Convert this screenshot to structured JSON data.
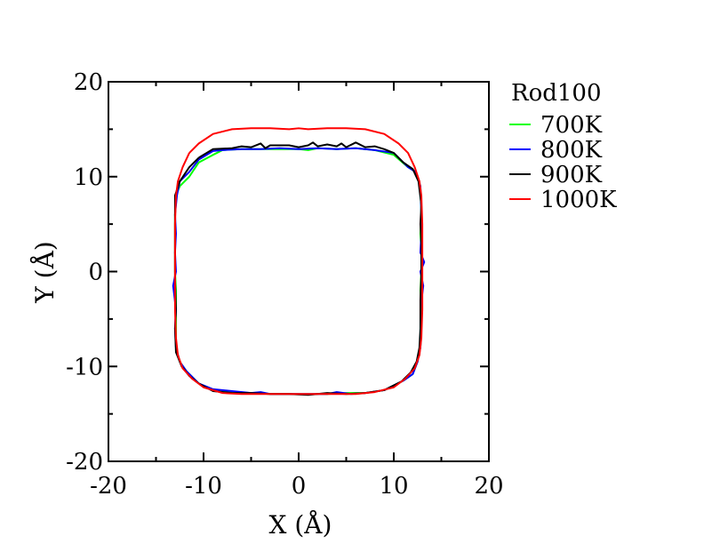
{
  "chart_data": {
    "type": "line",
    "title": "",
    "xlabel": "X (Å)",
    "ylabel": "Y (Å)",
    "xlim": [
      -20,
      20
    ],
    "ylim": [
      -20,
      20
    ],
    "xticks": [
      -20,
      -10,
      0,
      10,
      20
    ],
    "yticks": [
      -20,
      -10,
      0,
      10,
      20
    ],
    "xtick_labels": [
      "-20",
      "-10",
      "0",
      "10",
      "20"
    ],
    "ytick_labels": [
      "-20",
      "-10",
      "0",
      "10",
      "20"
    ],
    "grid": false,
    "legend_title": "Rod100",
    "legend_position": "right-outside-top",
    "series": [
      {
        "name": "700K",
        "color": "#00ff00",
        "points": [
          [
            -10.5,
            11.5
          ],
          [
            -9.0,
            12.3
          ],
          [
            -8.0,
            12.8
          ],
          [
            -6.0,
            12.9
          ],
          [
            -4.0,
            12.9
          ],
          [
            -2.0,
            12.9
          ],
          [
            0.0,
            12.9
          ],
          [
            1.0,
            12.8
          ],
          [
            2.0,
            13.0
          ],
          [
            4.0,
            12.9
          ],
          [
            6.0,
            13.0
          ],
          [
            8.0,
            12.8
          ],
          [
            10.0,
            12.3
          ],
          [
            11.5,
            11.0
          ],
          [
            12.3,
            10.5
          ],
          [
            12.8,
            9.0
          ],
          [
            12.9,
            6.0
          ],
          [
            12.8,
            4.0
          ],
          [
            12.9,
            2.0
          ],
          [
            12.9,
            0.0
          ],
          [
            12.8,
            -2.0
          ],
          [
            12.9,
            -4.0
          ],
          [
            12.9,
            -6.0
          ],
          [
            12.8,
            -8.0
          ],
          [
            12.5,
            -9.5
          ],
          [
            12.0,
            -10.8
          ],
          [
            11.0,
            -11.5
          ],
          [
            9.0,
            -12.5
          ],
          [
            7.0,
            -12.8
          ],
          [
            5.0,
            -12.8
          ],
          [
            3.0,
            -12.9
          ],
          [
            1.0,
            -12.9
          ],
          [
            -1.0,
            -12.9
          ],
          [
            -3.0,
            -12.9
          ],
          [
            -5.0,
            -12.8
          ],
          [
            -7.0,
            -12.7
          ],
          [
            -9.0,
            -12.5
          ],
          [
            -10.5,
            -11.8
          ],
          [
            -11.8,
            -10.5
          ],
          [
            -12.5,
            -9.5
          ],
          [
            -12.9,
            -8.0
          ],
          [
            -12.9,
            -6.0
          ],
          [
            -12.9,
            -4.0
          ],
          [
            -12.9,
            -2.0
          ],
          [
            -13.0,
            0.0
          ],
          [
            -13.0,
            2.0
          ],
          [
            -13.0,
            4.0
          ],
          [
            -13.0,
            6.0
          ],
          [
            -12.9,
            8.0
          ],
          [
            -12.5,
            9.0
          ],
          [
            -11.5,
            10.0
          ],
          [
            -10.5,
            11.5
          ]
        ]
      },
      {
        "name": "800K",
        "color": "#0000ff",
        "points": [
          [
            -10.5,
            11.8
          ],
          [
            -9.0,
            12.7
          ],
          [
            -8.0,
            12.8
          ],
          [
            -6.0,
            12.9
          ],
          [
            -4.0,
            12.9
          ],
          [
            -2.0,
            13.0
          ],
          [
            0.0,
            12.9
          ],
          [
            2.0,
            13.0
          ],
          [
            4.0,
            12.9
          ],
          [
            6.0,
            13.0
          ],
          [
            8.0,
            12.8
          ],
          [
            10.0,
            12.5
          ],
          [
            11.5,
            11.0
          ],
          [
            12.3,
            10.5
          ],
          [
            12.8,
            9.0
          ],
          [
            12.9,
            6.0
          ],
          [
            12.9,
            4.0
          ],
          [
            12.8,
            2.0
          ],
          [
            13.2,
            1.0
          ],
          [
            12.8,
            0.0
          ],
          [
            13.1,
            -1.5
          ],
          [
            12.8,
            -4.0
          ],
          [
            12.9,
            -6.0
          ],
          [
            12.8,
            -8.0
          ],
          [
            12.5,
            -9.5
          ],
          [
            12.0,
            -10.8
          ],
          [
            11.0,
            -11.5
          ],
          [
            9.0,
            -12.5
          ],
          [
            7.0,
            -12.8
          ],
          [
            5.5,
            -12.9
          ],
          [
            4.0,
            -12.7
          ],
          [
            3.0,
            -12.9
          ],
          [
            1.0,
            -12.9
          ],
          [
            -1.0,
            -12.9
          ],
          [
            -3.0,
            -12.9
          ],
          [
            -4.0,
            -12.7
          ],
          [
            -5.0,
            -12.8
          ],
          [
            -7.0,
            -12.6
          ],
          [
            -9.0,
            -12.4
          ],
          [
            -10.5,
            -11.8
          ],
          [
            -11.8,
            -10.5
          ],
          [
            -12.5,
            -9.5
          ],
          [
            -12.9,
            -8.0
          ],
          [
            -13.0,
            -6.0
          ],
          [
            -12.9,
            -4.0
          ],
          [
            -13.2,
            -1.5
          ],
          [
            -12.9,
            0.0
          ],
          [
            -13.0,
            2.0
          ],
          [
            -12.9,
            4.0
          ],
          [
            -13.0,
            6.0
          ],
          [
            -12.8,
            8.0
          ],
          [
            -12.5,
            9.5
          ],
          [
            -11.5,
            10.5
          ],
          [
            -10.5,
            11.8
          ]
        ]
      },
      {
        "name": "900K",
        "color": "#000000",
        "points": [
          [
            -10.5,
            12.0
          ],
          [
            -9.0,
            12.9
          ],
          [
            -7.0,
            13.0
          ],
          [
            -6.0,
            13.2
          ],
          [
            -5.0,
            13.1
          ],
          [
            -4.0,
            13.5
          ],
          [
            -3.5,
            13.0
          ],
          [
            -3.0,
            13.3
          ],
          [
            -2.0,
            13.3
          ],
          [
            -1.0,
            13.3
          ],
          [
            0.0,
            13.1
          ],
          [
            1.0,
            13.3
          ],
          [
            1.5,
            13.6
          ],
          [
            2.0,
            13.2
          ],
          [
            3.0,
            13.4
          ],
          [
            4.0,
            13.2
          ],
          [
            4.5,
            13.5
          ],
          [
            5.0,
            13.1
          ],
          [
            6.0,
            13.6
          ],
          [
            7.0,
            13.1
          ],
          [
            8.0,
            13.2
          ],
          [
            9.0,
            12.9
          ],
          [
            10.0,
            12.5
          ],
          [
            11.0,
            11.5
          ],
          [
            12.0,
            10.8
          ],
          [
            12.6,
            9.5
          ],
          [
            12.9,
            7.0
          ],
          [
            12.8,
            5.0
          ],
          [
            12.9,
            3.0
          ],
          [
            12.9,
            0.0
          ],
          [
            12.8,
            -3.0
          ],
          [
            12.8,
            -6.0
          ],
          [
            12.7,
            -8.0
          ],
          [
            12.4,
            -9.5
          ],
          [
            11.8,
            -10.6
          ],
          [
            10.8,
            -11.6
          ],
          [
            9.0,
            -12.5
          ],
          [
            7.0,
            -12.8
          ],
          [
            5.0,
            -12.9
          ],
          [
            3.0,
            -12.8
          ],
          [
            1.0,
            -13.0
          ],
          [
            -1.0,
            -12.9
          ],
          [
            -3.0,
            -12.9
          ],
          [
            -5.0,
            -12.8
          ],
          [
            -7.0,
            -12.8
          ],
          [
            -9.0,
            -12.6
          ],
          [
            -10.5,
            -11.8
          ],
          [
            -11.5,
            -11.0
          ],
          [
            -12.3,
            -10.0
          ],
          [
            -12.9,
            -8.5
          ],
          [
            -13.0,
            -6.0
          ],
          [
            -12.9,
            -4.0
          ],
          [
            -13.0,
            -1.0
          ],
          [
            -13.0,
            2.0
          ],
          [
            -13.0,
            5.0
          ],
          [
            -13.0,
            8.0
          ],
          [
            -12.5,
            9.5
          ],
          [
            -11.5,
            11.0
          ],
          [
            -10.5,
            12.0
          ]
        ]
      },
      {
        "name": "1000K",
        "color": "#ff0000",
        "points": [
          [
            -11.5,
            12.5
          ],
          [
            -10.5,
            13.5
          ],
          [
            -9.0,
            14.5
          ],
          [
            -7.0,
            15.0
          ],
          [
            -5.0,
            15.1
          ],
          [
            -3.0,
            15.1
          ],
          [
            -1.0,
            15.0
          ],
          [
            0.0,
            15.1
          ],
          [
            1.0,
            15.0
          ],
          [
            3.0,
            15.1
          ],
          [
            5.0,
            15.1
          ],
          [
            7.0,
            15.0
          ],
          [
            9.0,
            14.5
          ],
          [
            10.5,
            13.5
          ],
          [
            11.5,
            12.5
          ],
          [
            12.2,
            11.0
          ],
          [
            12.7,
            9.5
          ],
          [
            12.9,
            8.0
          ],
          [
            13.0,
            5.0
          ],
          [
            13.0,
            2.0
          ],
          [
            13.0,
            -1.0
          ],
          [
            13.0,
            -4.0
          ],
          [
            12.9,
            -7.0
          ],
          [
            12.7,
            -8.8
          ],
          [
            12.2,
            -10.2
          ],
          [
            11.2,
            -11.3
          ],
          [
            10.0,
            -12.2
          ],
          [
            8.0,
            -12.7
          ],
          [
            6.0,
            -12.9
          ],
          [
            4.0,
            -12.9
          ],
          [
            2.0,
            -12.9
          ],
          [
            0.0,
            -12.9
          ],
          [
            -2.0,
            -12.9
          ],
          [
            -4.0,
            -12.9
          ],
          [
            -6.0,
            -12.9
          ],
          [
            -8.0,
            -12.8
          ],
          [
            -10.0,
            -12.2
          ],
          [
            -11.2,
            -11.3
          ],
          [
            -12.2,
            -10.2
          ],
          [
            -12.7,
            -8.8
          ],
          [
            -12.9,
            -7.0
          ],
          [
            -13.0,
            -4.0
          ],
          [
            -13.0,
            -1.0
          ],
          [
            -13.0,
            2.0
          ],
          [
            -13.0,
            5.0
          ],
          [
            -12.9,
            8.0
          ],
          [
            -12.7,
            9.5
          ],
          [
            -12.2,
            11.0
          ],
          [
            -11.5,
            12.5
          ]
        ]
      }
    ]
  }
}
